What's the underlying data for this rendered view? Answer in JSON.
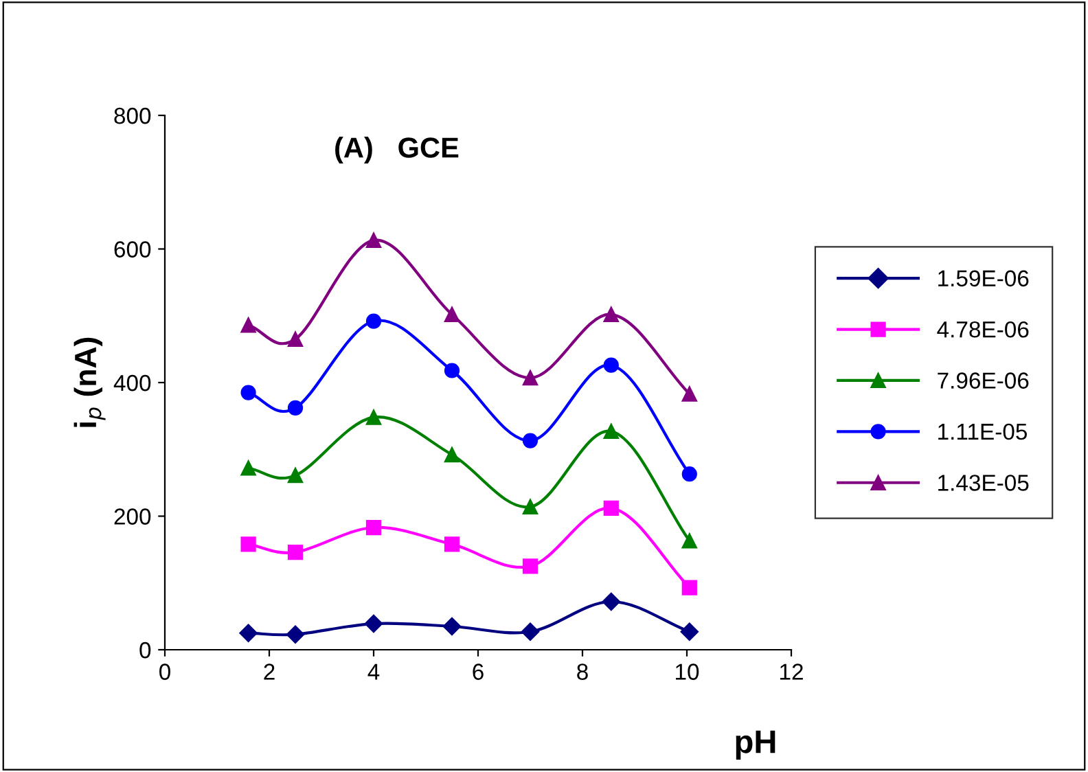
{
  "chart_data": {
    "type": "line",
    "title": "(A)   GCE",
    "xlabel": "pH",
    "ylabel": "i$_{p}$ (nA)",
    "xlim": [
      0,
      12
    ],
    "xticks": [
      0,
      2,
      4,
      6,
      8,
      10,
      12
    ],
    "ylim": [
      0,
      800
    ],
    "yticks": [
      0,
      200,
      400,
      600,
      800
    ],
    "grid": false,
    "legend": "right",
    "line_style": "solid",
    "x": [
      1.6,
      2.5,
      4,
      5.5,
      7,
      8.55,
      10.05
    ],
    "series": [
      {
        "name": "1.59E-06",
        "color": "#000080",
        "marker": "diamond",
        "values": [
          25,
          23,
          39,
          35,
          27,
          72,
          27
        ]
      },
      {
        "name": "4.78E-06",
        "color": "#ff00ff",
        "marker": "square",
        "values": [
          158,
          146,
          183,
          158,
          125,
          212,
          93
        ]
      },
      {
        "name": "7.96E-06",
        "color": "#008000",
        "marker": "triangle",
        "values": [
          272,
          261,
          348,
          292,
          214,
          327,
          163
        ]
      },
      {
        "name": "1.11E-05",
        "color": "#0000ff",
        "marker": "circle",
        "values": [
          385,
          362,
          492,
          418,
          313,
          426,
          263
        ]
      },
      {
        "name": "1.43E-05",
        "color": "#800080",
        "marker": "triangle",
        "values": [
          486,
          465,
          613,
          502,
          407,
          502,
          383
        ]
      }
    ]
  }
}
